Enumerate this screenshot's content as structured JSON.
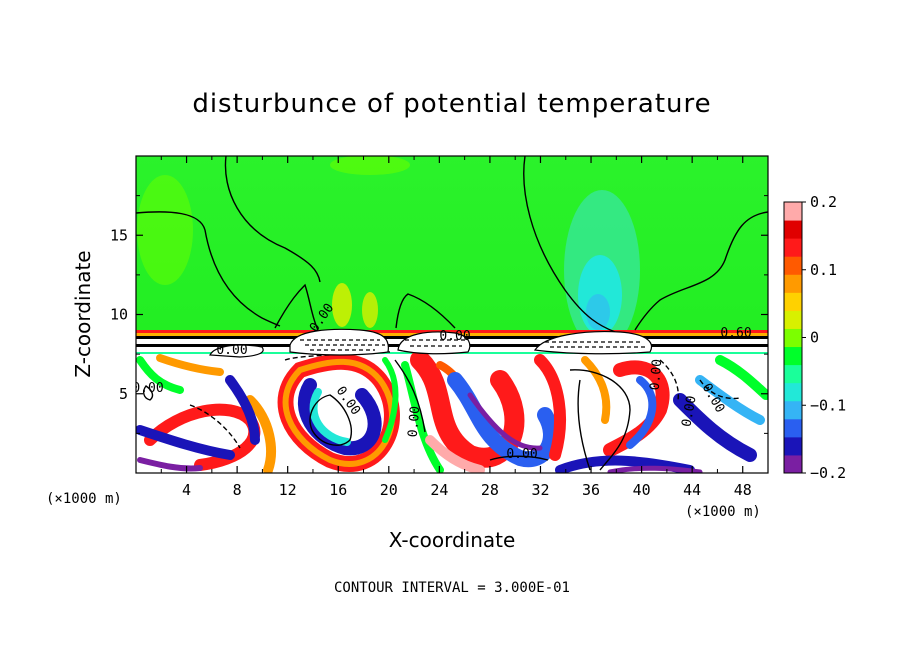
{
  "chart_data": {
    "type": "heatmap",
    "title": "disturbunce of potential temperature",
    "xlabel": "X-coordinate",
    "ylabel": "Z-coordinate",
    "x_unit": "(×1000 m)",
    "xlim": [
      0,
      50
    ],
    "ylim": [
      0,
      20
    ],
    "x_ticks": [
      "4",
      "8",
      "12",
      "16",
      "20",
      "24",
      "28",
      "32",
      "36",
      "40",
      "44",
      "48"
    ],
    "y_ticks": [
      "5",
      "10",
      "15"
    ],
    "colorbar": {
      "range": [
        -0.2,
        0.2
      ],
      "tick_labels": [
        "0.2",
        "0.1",
        "0",
        "−0.1",
        "−0.2"
      ],
      "colors": [
        "#7a1fa2",
        "#1a14b8",
        "#2a5ff0",
        "#35b4f5",
        "#22e8d8",
        "#1aff9a",
        "#00ff2a",
        "#7cff00",
        "#d8f000",
        "#ffd100",
        "#ff9a00",
        "#ff5a00",
        "#ff1a1a",
        "#e00000",
        "#ffaaaa"
      ]
    },
    "contour_labels": [
      "0.00",
      "0.00",
      "0.00",
      "0.00",
      "0.00",
      "0.00",
      "0.00",
      "0.00",
      "0.60",
      "0.00",
      "0.00"
    ],
    "footer": "CONTOUR INTERVAL = 3.000E-01"
  }
}
